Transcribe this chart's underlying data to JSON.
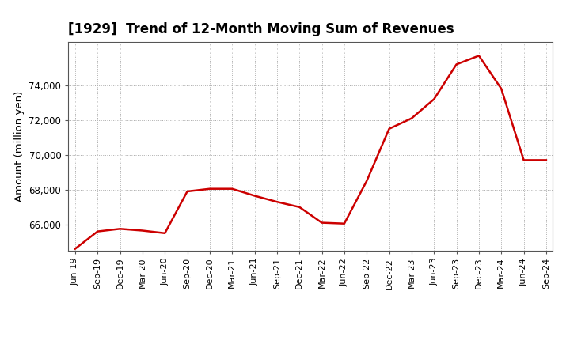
{
  "title": "[1929]  Trend of 12-Month Moving Sum of Revenues",
  "ylabel": "Amount (million yen)",
  "line_color": "#cc0000",
  "line_width": 1.8,
  "background_color": "#ffffff",
  "grid_color": "#aaaaaa",
  "ylim": [
    64500,
    76500
  ],
  "yticks": [
    66000,
    68000,
    70000,
    72000,
    74000
  ],
  "x_labels": [
    "Jun-19",
    "Sep-19",
    "Dec-19",
    "Mar-20",
    "Jun-20",
    "Sep-20",
    "Dec-20",
    "Mar-21",
    "Jun-21",
    "Sep-21",
    "Dec-21",
    "Mar-22",
    "Jun-22",
    "Sep-22",
    "Dec-22",
    "Mar-23",
    "Jun-23",
    "Sep-23",
    "Dec-23",
    "Mar-24",
    "Jun-24",
    "Sep-24"
  ],
  "values": [
    64600,
    65600,
    65750,
    65650,
    65500,
    67900,
    68050,
    68050,
    67650,
    67300,
    67000,
    66100,
    66050,
    68500,
    71500,
    72100,
    73200,
    75200,
    75700,
    73800,
    69700,
    69700
  ]
}
